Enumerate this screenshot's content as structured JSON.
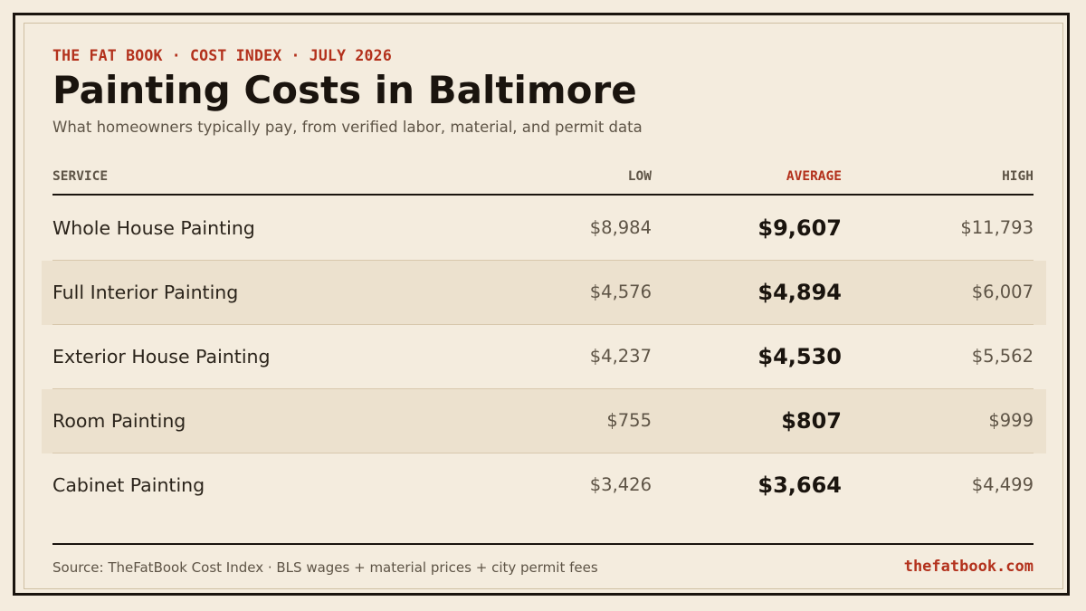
{
  "header": {
    "kicker": "THE FAT BOOK · COST INDEX · JULY 2026",
    "title": "Painting Costs in Baltimore",
    "subtitle": "What homeowners typically pay, from verified labor, material, and permit data"
  },
  "columns": {
    "service": "SERVICE",
    "low": "LOW",
    "average": "AVERAGE",
    "high": "HIGH"
  },
  "rows": [
    {
      "service": "Whole House Painting",
      "low": "$8,984",
      "average": "$9,607",
      "high": "$11,793"
    },
    {
      "service": "Full Interior Painting",
      "low": "$4,576",
      "average": "$4,894",
      "high": "$6,007"
    },
    {
      "service": "Exterior House Painting",
      "low": "$4,237",
      "average": "$4,530",
      "high": "$5,562"
    },
    {
      "service": "Room Painting",
      "low": "$755",
      "average": "$807",
      "high": "$999"
    },
    {
      "service": "Cabinet Painting",
      "low": "$3,426",
      "average": "$3,664",
      "high": "$4,499"
    }
  ],
  "footer": {
    "source": "Source: TheFatBook Cost Index · BLS wages + material prices + city permit fees",
    "site": "thefatbook.com"
  },
  "colors": {
    "background": "#f4ecde",
    "accent": "#b3311c",
    "ink": "#1a140e",
    "row_shade": "#ece1ce"
  },
  "chart_data": {
    "type": "table",
    "title": "Painting Costs in Baltimore",
    "subtitle": "What homeowners typically pay, from verified labor, material, and permit data",
    "columns": [
      "SERVICE",
      "LOW",
      "AVERAGE",
      "HIGH"
    ],
    "categories": [
      "Whole House Painting",
      "Full Interior Painting",
      "Exterior House Painting",
      "Room Painting",
      "Cabinet Painting"
    ],
    "series": [
      {
        "name": "LOW",
        "values": [
          8984,
          4576,
          4237,
          755,
          3426
        ]
      },
      {
        "name": "AVERAGE",
        "values": [
          9607,
          4894,
          4530,
          807,
          3664
        ]
      },
      {
        "name": "HIGH",
        "values": [
          11793,
          6007,
          5562,
          999,
          4499
        ]
      }
    ]
  }
}
